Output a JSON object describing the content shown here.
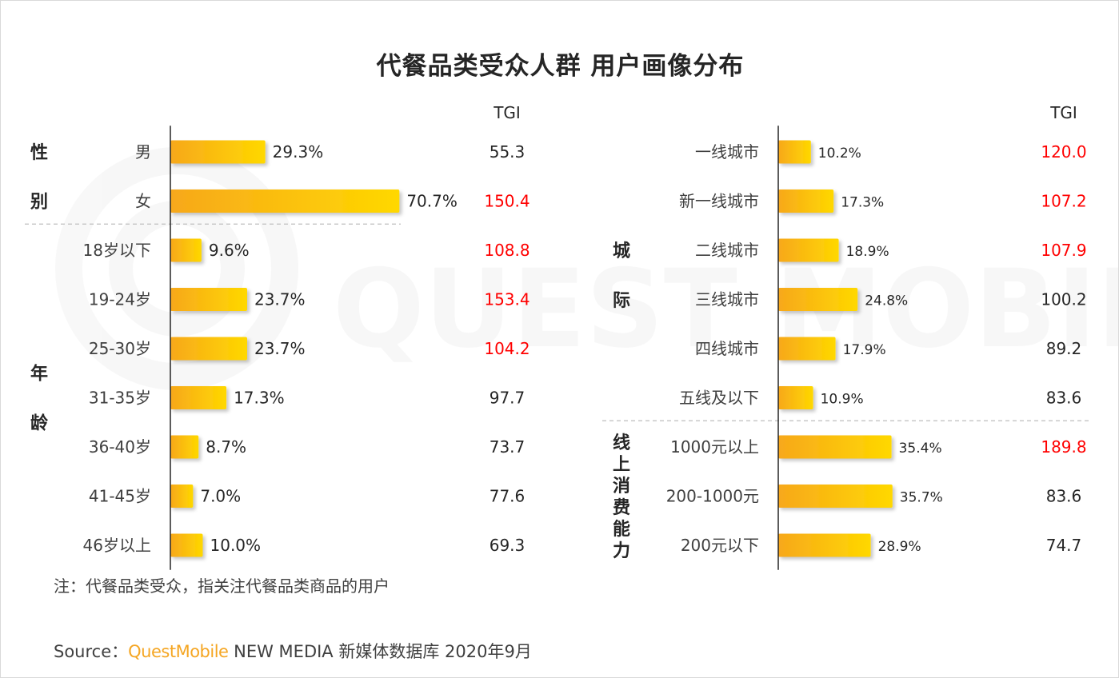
{
  "title": "代餐品类受众人群 用户画像分布",
  "note": "注：代餐品类受众，指关注代餐品类商品的用户",
  "source": {
    "prefix": "Source：",
    "brand": "QuestMobile",
    "suffix": " NEW MEDIA 新媒体数据库 2020年9月"
  },
  "watermark": "QUEST MOBILE",
  "colors": {
    "bar_start": "#f7a81b",
    "bar_end": "#ffd800",
    "tgi_highlight": "#ff0000",
    "tgi_normal": "#262626"
  },
  "chart_data": [
    {
      "type": "bar",
      "orientation": "horizontal",
      "panel": "left",
      "tgi_header": "TGI",
      "x_unit": "%",
      "groups": [
        {
          "label": "性别",
          "label_chars": [
            "性",
            "别"
          ],
          "categories": [
            "男",
            "女"
          ],
          "values": [
            29.3,
            70.7
          ],
          "value_labels": [
            "29.3%",
            "70.7%"
          ],
          "tgi": [
            "55.3",
            "150.4"
          ],
          "tgi_highlight": [
            false,
            true
          ]
        },
        {
          "label": "年龄",
          "label_chars": [
            "年",
            "龄"
          ],
          "categories": [
            "18岁以下",
            "19-24岁",
            "25-30岁",
            "31-35岁",
            "36-40岁",
            "41-45岁",
            "46岁以上"
          ],
          "values": [
            9.6,
            23.7,
            23.7,
            17.3,
            8.7,
            7.0,
            10.0
          ],
          "value_labels": [
            "9.6%",
            "23.7%",
            "23.7%",
            "17.3%",
            "8.7%",
            "7.0%",
            "10.0%"
          ],
          "tgi": [
            "108.8",
            "153.4",
            "104.2",
            "97.7",
            "73.7",
            "77.6",
            "69.3"
          ],
          "tgi_highlight": [
            true,
            true,
            true,
            false,
            false,
            false,
            false
          ]
        }
      ]
    },
    {
      "type": "bar",
      "orientation": "horizontal",
      "panel": "right",
      "tgi_header": "TGI",
      "x_unit": "%",
      "groups": [
        {
          "label": "城际",
          "label_chars": [
            "城",
            "际"
          ],
          "categories": [
            "一线城市",
            "新一线城市",
            "二线城市",
            "三线城市",
            "四线城市",
            "五线及以下"
          ],
          "values": [
            10.2,
            17.3,
            18.9,
            24.8,
            17.9,
            10.9
          ],
          "value_labels": [
            "10.2%",
            "17.3%",
            "18.9%",
            "24.8%",
            "17.9%",
            "10.9%"
          ],
          "tgi": [
            "120.0",
            "107.2",
            "107.9",
            "100.2",
            "89.2",
            "83.6"
          ],
          "tgi_highlight": [
            true,
            true,
            true,
            false,
            false,
            false
          ]
        },
        {
          "label": "线上消费能力",
          "label_chars": [
            "线",
            "上",
            "消",
            "费",
            "能",
            "力"
          ],
          "categories": [
            "1000元以上",
            "200-1000元",
            "200元以下"
          ],
          "values": [
            35.4,
            35.7,
            28.9
          ],
          "value_labels": [
            "35.4%",
            "35.7%",
            "28.9%"
          ],
          "tgi": [
            "189.8",
            "83.6",
            "74.7"
          ],
          "tgi_highlight": [
            true,
            false,
            false
          ]
        }
      ]
    }
  ]
}
